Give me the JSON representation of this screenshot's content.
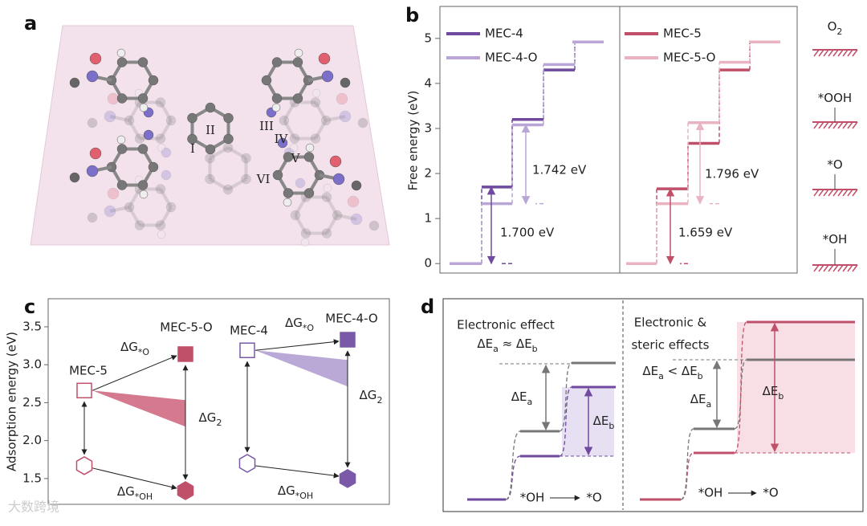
{
  "panels": [
    "a",
    "b",
    "c",
    "d"
  ],
  "molecule": {
    "site_labels": [
      "I",
      "II",
      "III",
      "IV",
      "V",
      "VI"
    ]
  },
  "chart_data": [
    {
      "type": "step",
      "ylabel": "Free energy (eV)",
      "ylim": [
        -0.21,
        5.71
      ],
      "yticks": [
        0,
        1,
        2,
        3,
        4,
        5
      ],
      "series": [
        {
          "name": "MEC-4",
          "color": "#6f4a9e",
          "values": [
            0,
            1.7,
            3.2,
            4.3,
            4.92
          ]
        },
        {
          "name": "MEC-4-O",
          "color": "#b9a6d6",
          "values": [
            0,
            1.33,
            3.08,
            4.42,
            4.92
          ]
        }
      ],
      "annotations": [
        "1.700 eV",
        "1.742 eV"
      ]
    },
    {
      "type": "step",
      "ylim": [
        -0.21,
        5.71
      ],
      "series": [
        {
          "name": "MEC-5",
          "color": "#c0506a",
          "values": [
            0,
            1.66,
            2.67,
            4.3,
            4.92
          ]
        },
        {
          "name": "MEC-5-O",
          "color": "#eab3c2",
          "values": [
            0,
            1.33,
            3.13,
            4.47,
            4.92
          ]
        }
      ],
      "annotations": [
        "1.659 eV",
        "1.796 eV"
      ],
      "states": [
        [
          "O",
          "2"
        ],
        [
          "*OOH"
        ],
        [
          "*O"
        ],
        [
          "*OH"
        ]
      ]
    },
    {
      "type": "scatter",
      "ylabel": "Adsorption energy (eV)",
      "ylim": [
        1.16,
        3.87
      ],
      "yticks": [
        1.5,
        {
          "value": 2,
          "label": "2.0"
        },
        2.5,
        {
          "value": 3,
          "label": "3.0"
        },
        3.5
      ],
      "series": [
        {
          "name": "MEC-5",
          "color": "#c0506a",
          "filled": false,
          "values": [
            2.66,
            1.67
          ]
        },
        {
          "name": "MEC-5-O",
          "color": "#c0506a",
          "filled": true,
          "values": [
            3.14,
            1.34
          ]
        },
        {
          "name": "MEC-4",
          "color": "#7a5aa8",
          "filled": false,
          "values": [
            3.19,
            1.7
          ]
        },
        {
          "name": "MEC-4-O",
          "color": "#7a5aa8",
          "filled": true,
          "values": [
            3.33,
            1.5
          ]
        }
      ],
      "annotations": [
        [
          "ΔG",
          "*O"
        ],
        [
          "ΔG",
          "*OH"
        ],
        [
          "ΔG",
          "2"
        ],
        [
          "ΔG",
          "*O"
        ],
        [
          "ΔG",
          "*OH"
        ],
        [
          "ΔG",
          "2"
        ]
      ]
    }
  ],
  "schematic": {
    "left_title": "Electronic effect",
    "left_relation": [
      "ΔE",
      "a",
      " ≈ ΔE",
      "b"
    ],
    "right_title": [
      "Electronic &",
      "steric effects"
    ],
    "right_relation": [
      "ΔE",
      "a",
      "  < ΔE",
      "b"
    ],
    "delta_a": [
      "ΔE",
      "a"
    ],
    "delta_b": [
      "ΔE",
      "b"
    ],
    "from_state": "*OH",
    "to_state": "*O"
  },
  "watermark": "大数跨境"
}
